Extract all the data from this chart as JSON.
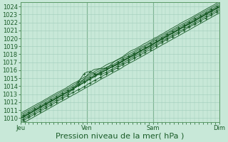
{
  "title": "Pression niveau de la mer( hPa )",
  "xlabel": "Pression niveau de la mer( hPa )",
  "ylabel": "",
  "ylim": [
    1009.5,
    1024.5
  ],
  "yticks": [
    1010,
    1011,
    1012,
    1013,
    1014,
    1015,
    1016,
    1017,
    1018,
    1019,
    1020,
    1021,
    1022,
    1023,
    1024
  ],
  "xtick_labels": [
    "Jeu",
    "Ven",
    "Sam",
    "Dim"
  ],
  "xtick_positions": [
    0,
    96,
    192,
    288
  ],
  "xlim": [
    0,
    288
  ],
  "bg_color": "#c8e8d8",
  "grid_color": "#a0ccbb",
  "line_color": "#1a5c28",
  "marker_color": "#2d7a3c",
  "vline_color": "#5a9966",
  "tick_fontsize": 6,
  "xlabel_fontsize": 8
}
